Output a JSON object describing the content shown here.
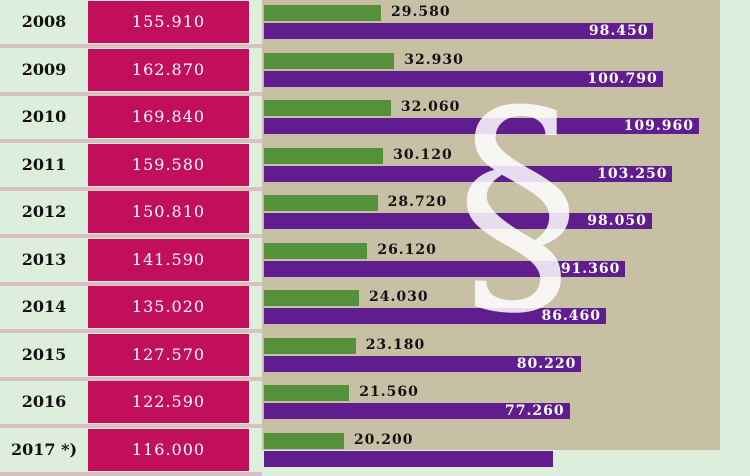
{
  "chart_data": {
    "type": "bar",
    "categories": [
      "2008",
      "2009",
      "2010",
      "2011",
      "2012",
      "2013",
      "2014",
      "2015",
      "2016",
      "2017 *)"
    ],
    "totals": [
      "155.910",
      "162.870",
      "169.840",
      "159.580",
      "150.810",
      "141.590",
      "135.020",
      "127.570",
      "122.590",
      "116.000"
    ],
    "series": [
      {
        "values": [
          29580,
          32930,
          32060,
          30120,
          28720,
          26120,
          24030,
          23180,
          21560,
          20200
        ],
        "labels": [
          "29.580",
          "32.930",
          "32.060",
          "30.120",
          "28.720",
          "26.120",
          "24.030",
          "23.180",
          "21.560",
          "20.200"
        ],
        "color": "#55913b"
      },
      {
        "values": [
          98450,
          100790,
          109960,
          103250,
          98050,
          91360,
          86460,
          80220,
          77260,
          73000
        ],
        "labels": [
          "98.450",
          "100.790",
          "109.960",
          "103.250",
          "98.050",
          "91.360",
          "86.460",
          "80.220",
          "77.260",
          ""
        ],
        "color": "#5f1d8d"
      }
    ],
    "colors": {
      "total_box": "#c20f5b",
      "panel": "#c7c0a5",
      "background": "#ddeedd"
    },
    "decoration": "§"
  }
}
